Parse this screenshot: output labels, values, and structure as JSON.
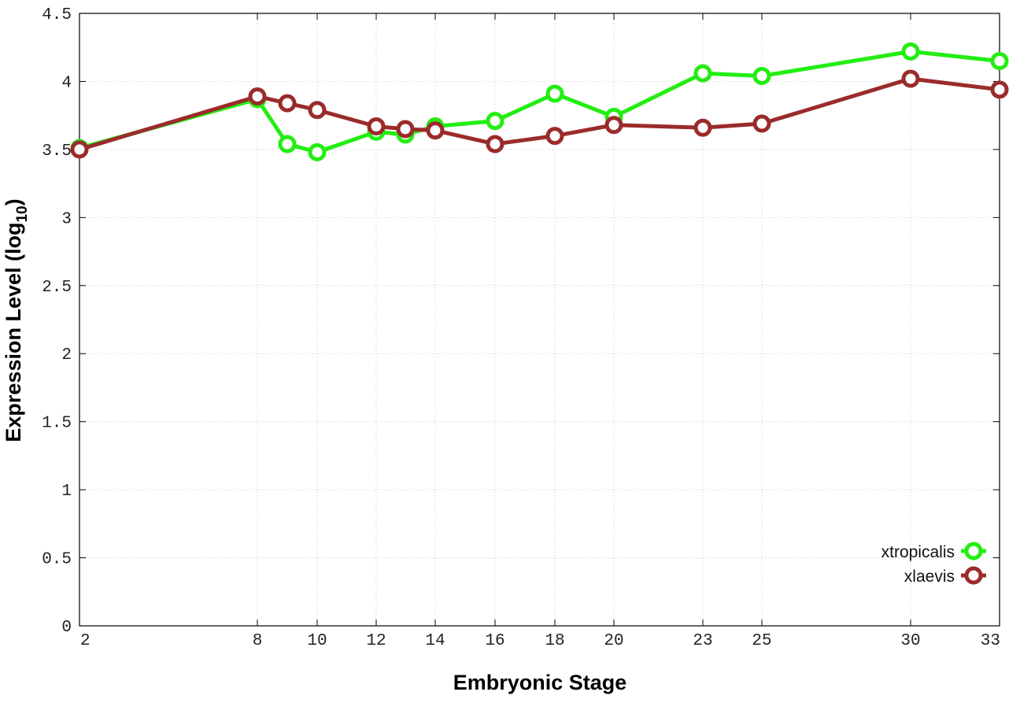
{
  "chart_data": {
    "type": "line",
    "title": "",
    "xlabel": "Embryonic Stage",
    "ylabel": "Expression Level (log10)",
    "ylabel_parts": {
      "main": "Expression Level (log",
      "sub": "10",
      "close": ")"
    },
    "x_ticks": [
      2,
      8,
      10,
      12,
      14,
      16,
      18,
      20,
      23,
      25,
      30,
      33
    ],
    "x_tick_labels": [
      "2",
      "8",
      "10",
      "12",
      "14",
      "16",
      "18",
      "20",
      "23",
      "25",
      "30",
      "33"
    ],
    "y_ticks": [
      0,
      0.5,
      1,
      1.5,
      2,
      2.5,
      3,
      3.5,
      4,
      4.5
    ],
    "y_tick_labels": [
      "0",
      "0.5",
      "1",
      "1.5",
      "2",
      "2.5",
      "3",
      "3.5",
      "4",
      "4.5"
    ],
    "ylim": [
      0,
      4.5
    ],
    "grid": true,
    "legend_position": "bottom-right",
    "categories": [
      "2",
      "8",
      "9",
      "10",
      "12",
      "13",
      "14",
      "16",
      "18",
      "20",
      "23",
      "25",
      "30",
      "33"
    ],
    "series": [
      {
        "name": "xtropicalis",
        "color": "#22ee11",
        "values": [
          3.51,
          3.87,
          3.54,
          3.48,
          3.63,
          3.61,
          3.67,
          3.71,
          3.91,
          3.74,
          4.06,
          4.04,
          4.22,
          4.15
        ]
      },
      {
        "name": "xlaevis",
        "color": "#9b2b2b",
        "values": [
          3.5,
          3.89,
          3.84,
          3.79,
          3.67,
          3.65,
          3.64,
          3.54,
          3.6,
          3.68,
          3.66,
          3.69,
          4.02,
          3.94
        ]
      }
    ]
  }
}
